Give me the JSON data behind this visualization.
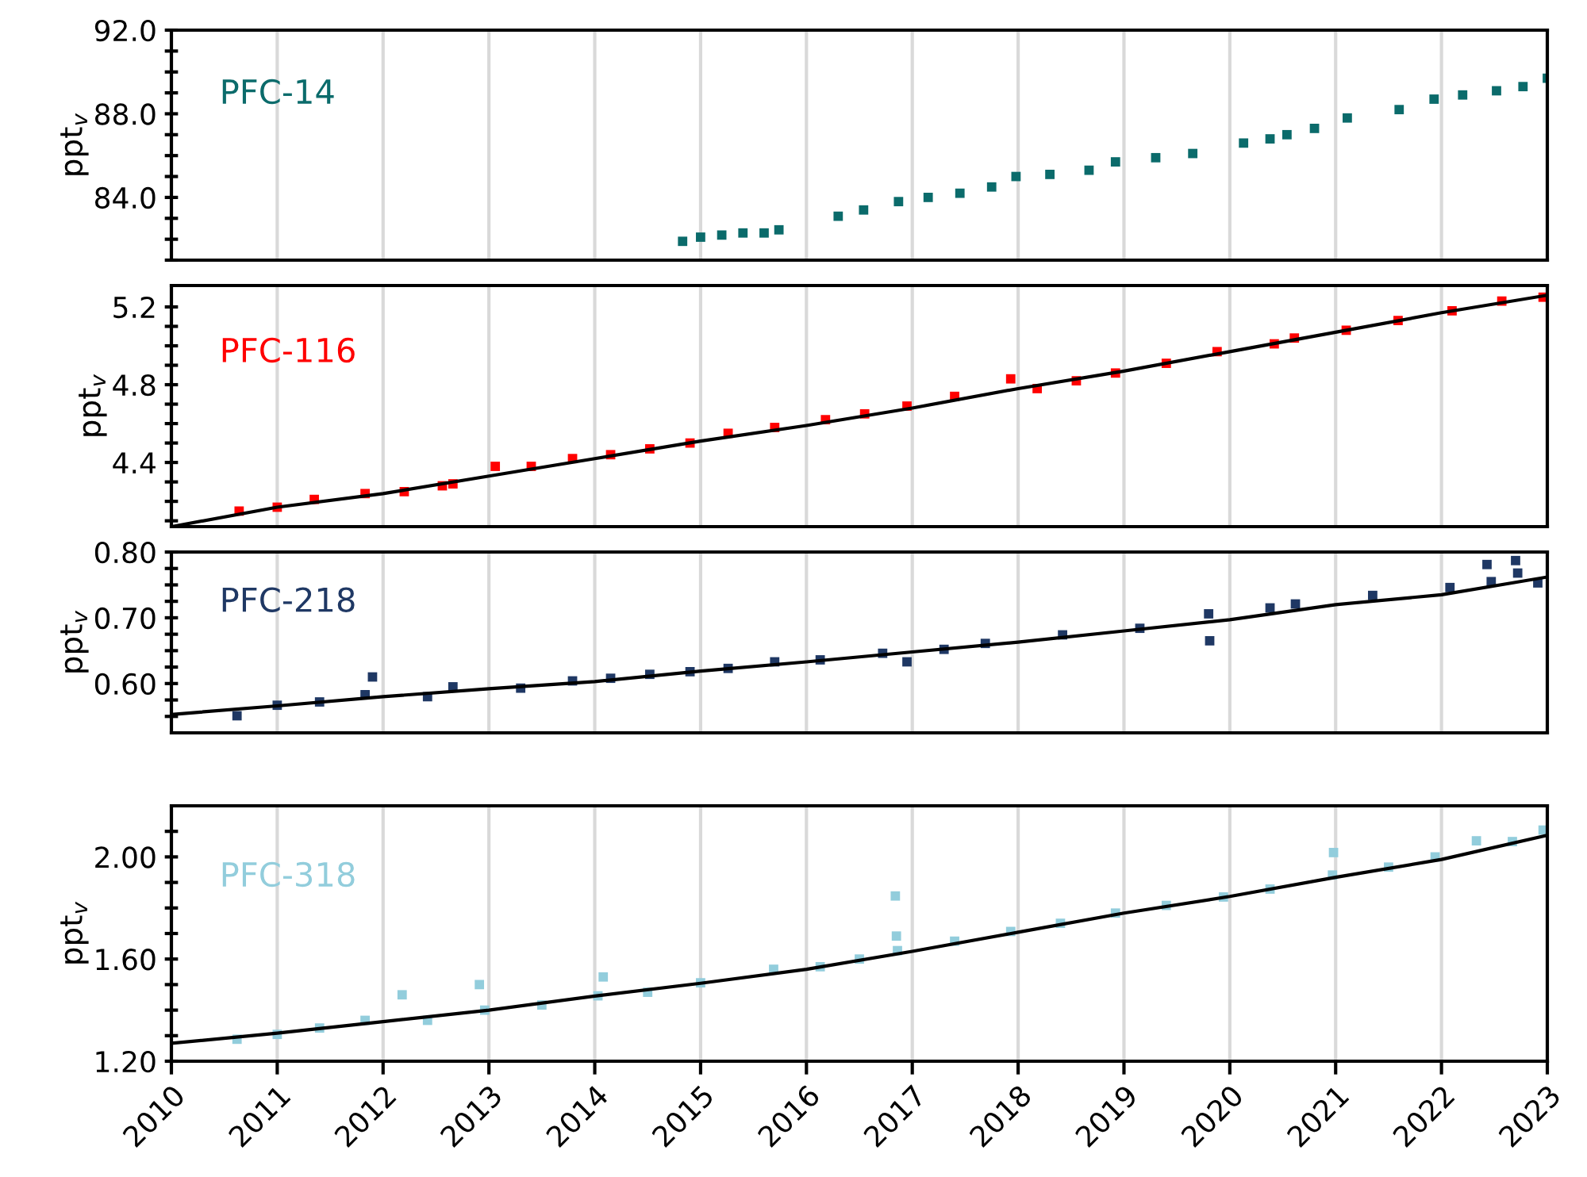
{
  "chart_data": [
    {
      "type": "scatter",
      "ylabel": "ppt$_{v}$",
      "xlim": [
        2010,
        2023
      ],
      "xticks": [
        2010,
        2011,
        2012,
        2013,
        2014,
        2015,
        2016,
        2017,
        2018,
        2019,
        2020,
        2021,
        2022,
        2023
      ],
      "ylim": [
        81,
        92
      ],
      "yticks": [
        {
          "value": 81,
          "label": null
        },
        {
          "value": 82,
          "label": null
        },
        {
          "value": 83,
          "label": null
        },
        {
          "value": 84,
          "label": "84.0"
        },
        {
          "value": 85,
          "label": null
        },
        {
          "value": 86,
          "label": null
        },
        {
          "value": 87,
          "label": null
        },
        {
          "value": 88,
          "label": "88.0"
        },
        {
          "value": 89,
          "label": null
        },
        {
          "value": 90,
          "label": null
        },
        {
          "value": 91,
          "label": null
        },
        {
          "value": 92,
          "label": "92.0"
        }
      ],
      "grid": "x",
      "tick_labels": "y",
      "series": [
        {
          "name": "PFC-14",
          "marker": "square",
          "color": "#0b6b6b",
          "x": [
            2014.83,
            2015.0,
            2015.2,
            2015.4,
            2015.6,
            2015.74,
            2016.3,
            2016.54,
            2016.87,
            2017.15,
            2017.45,
            2017.75,
            2017.98,
            2018.3,
            2018.67,
            2018.92,
            2019.3,
            2019.65,
            2020.13,
            2020.38,
            2020.54,
            2020.8,
            2021.11,
            2021.6,
            2021.93,
            2022.2,
            2022.52,
            2022.77,
            2023.0
          ],
          "values": [
            81.9,
            82.1,
            82.2,
            82.3,
            82.3,
            82.45,
            83.1,
            83.4,
            83.8,
            84.0,
            84.2,
            84.5,
            85.0,
            85.1,
            85.3,
            85.7,
            85.9,
            86.1,
            86.6,
            86.8,
            87.0,
            87.3,
            87.8,
            88.2,
            88.7,
            88.9,
            89.1,
            89.3,
            89.7
          ]
        }
      ]
    },
    {
      "type": "scatter",
      "ylabel": "ppt$_{v}$",
      "xlim": [
        2010,
        2023
      ],
      "xticks": [
        2010,
        2011,
        2012,
        2013,
        2014,
        2015,
        2016,
        2017,
        2018,
        2019,
        2020,
        2021,
        2022,
        2023
      ],
      "ylim": [
        4.07,
        5.31
      ],
      "yticks": [
        {
          "value": 4.1,
          "label": null
        },
        {
          "value": 4.2,
          "label": null
        },
        {
          "value": 4.3,
          "label": null
        },
        {
          "value": 4.4,
          "label": "4.4"
        },
        {
          "value": 4.5,
          "label": null
        },
        {
          "value": 4.6,
          "label": null
        },
        {
          "value": 4.7,
          "label": null
        },
        {
          "value": 4.8,
          "label": "4.8"
        },
        {
          "value": 4.9,
          "label": null
        },
        {
          "value": 5.0,
          "label": null
        },
        {
          "value": 5.1,
          "label": null
        },
        {
          "value": 5.2,
          "label": "5.2"
        }
      ],
      "grid": "x",
      "tick_labels": "y",
      "series": [
        {
          "name": "PFC-116",
          "marker": "square",
          "color": "#ff0000",
          "x": [
            2010.64,
            2011.0,
            2011.35,
            2011.83,
            2012.2,
            2012.56,
            2012.66,
            2013.06,
            2013.4,
            2013.79,
            2014.15,
            2014.52,
            2014.9,
            2015.26,
            2015.7,
            2016.18,
            2016.55,
            2016.95,
            2017.4,
            2017.93,
            2018.18,
            2018.55,
            2018.92,
            2019.4,
            2019.88,
            2020.42,
            2020.61,
            2021.1,
            2021.59,
            2022.1,
            2022.57,
            2022.96
          ],
          "values": [
            4.15,
            4.17,
            4.21,
            4.24,
            4.25,
            4.28,
            4.29,
            4.38,
            4.38,
            4.42,
            4.44,
            4.47,
            4.5,
            4.55,
            4.58,
            4.62,
            4.65,
            4.69,
            4.74,
            4.83,
            4.78,
            4.82,
            4.86,
            4.91,
            4.97,
            5.01,
            5.04,
            5.08,
            5.13,
            5.18,
            5.23,
            5.25
          ]
        },
        {
          "type": "line",
          "marker": "none",
          "color": "#000000",
          "x": [
            2010,
            2011,
            2012,
            2013,
            2014,
            2015,
            2016,
            2017,
            2018,
            2019,
            2020,
            2021,
            2022,
            2023
          ],
          "values": [
            4.07,
            4.17,
            4.24,
            4.33,
            4.42,
            4.51,
            4.59,
            4.68,
            4.78,
            4.87,
            4.97,
            5.07,
            5.17,
            5.26
          ]
        }
      ]
    },
    {
      "type": "scatter",
      "ylabel": "ppt$_{v}$",
      "xlim": [
        2010,
        2023
      ],
      "xticks": [
        2010,
        2011,
        2012,
        2013,
        2014,
        2015,
        2016,
        2017,
        2018,
        2019,
        2020,
        2021,
        2022,
        2023
      ],
      "ylim": [
        0.525,
        0.8
      ],
      "yticks": [
        {
          "value": 0.55,
          "label": null
        },
        {
          "value": 0.575,
          "label": null
        },
        {
          "value": 0.6,
          "label": "0.60"
        },
        {
          "value": 0.625,
          "label": null
        },
        {
          "value": 0.65,
          "label": null
        },
        {
          "value": 0.675,
          "label": null
        },
        {
          "value": 0.7,
          "label": "0.70"
        },
        {
          "value": 0.725,
          "label": null
        },
        {
          "value": 0.75,
          "label": null
        },
        {
          "value": 0.775,
          "label": null
        },
        {
          "value": 0.8,
          "label": "0.80"
        }
      ],
      "grid": "x",
      "tick_labels": "y",
      "series": [
        {
          "name": "PFC-218",
          "marker": "square",
          "color": "#1f3864",
          "x": [
            2010.62,
            2011.0,
            2011.4,
            2011.83,
            2011.9,
            2012.42,
            2012.66,
            2013.3,
            2013.79,
            2014.15,
            2014.52,
            2014.9,
            2015.26,
            2015.7,
            2016.13,
            2016.72,
            2016.95,
            2017.3,
            2017.69,
            2018.42,
            2019.15,
            2019.8,
            2019.81,
            2020.38,
            2020.62,
            2021.35,
            2022.08,
            2022.43,
            2022.47,
            2022.7,
            2022.72,
            2022.91
          ],
          "values": [
            0.551,
            0.567,
            0.572,
            0.583,
            0.61,
            0.58,
            0.595,
            0.593,
            0.604,
            0.608,
            0.614,
            0.618,
            0.623,
            0.633,
            0.636,
            0.646,
            0.633,
            0.652,
            0.661,
            0.674,
            0.684,
            0.706,
            0.665,
            0.715,
            0.721,
            0.734,
            0.746,
            0.781,
            0.755,
            0.787,
            0.768,
            0.753
          ]
        },
        {
          "type": "line",
          "marker": "none",
          "color": "#000000",
          "x": [
            2010,
            2011,
            2012,
            2013,
            2014,
            2015,
            2016,
            2017,
            2018,
            2019,
            2020,
            2021,
            2022,
            2023
          ],
          "values": [
            0.553,
            0.566,
            0.58,
            0.592,
            0.603,
            0.619,
            0.633,
            0.648,
            0.663,
            0.68,
            0.697,
            0.72,
            0.735,
            0.762
          ]
        }
      ]
    },
    {
      "type": "scatter",
      "ylabel": "ppt$_{v}$",
      "xlim": [
        2010,
        2023
      ],
      "xticks": [
        2010,
        2011,
        2012,
        2013,
        2014,
        2015,
        2016,
        2017,
        2018,
        2019,
        2020,
        2021,
        2022,
        2023
      ],
      "ylim": [
        1.2,
        2.2
      ],
      "yticks": [
        {
          "value": 1.2,
          "label": "1.20"
        },
        {
          "value": 1.3,
          "label": null
        },
        {
          "value": 1.4,
          "label": null
        },
        {
          "value": 1.5,
          "label": null
        },
        {
          "value": 1.6,
          "label": "1.60"
        },
        {
          "value": 1.7,
          "label": null
        },
        {
          "value": 1.8,
          "label": null
        },
        {
          "value": 1.9,
          "label": null
        },
        {
          "value": 2.0,
          "label": "2.00"
        },
        {
          "value": 2.1,
          "label": null
        }
      ],
      "grid": "x",
      "series": [
        {
          "name": "PFC-318",
          "marker": "square",
          "color": "#92cddc",
          "x": [
            2010.62,
            2011.0,
            2011.4,
            2011.83,
            2012.18,
            2012.42,
            2012.91,
            2012.96,
            2013.5,
            2014.03,
            2014.08,
            2014.5,
            2015.0,
            2015.69,
            2016.13,
            2016.5,
            2016.84,
            2016.85,
            2016.86,
            2017.4,
            2017.93,
            2018.4,
            2018.92,
            2019.4,
            2019.94,
            2020.38,
            2020.97,
            2020.98,
            2021.5,
            2021.94,
            2022.33,
            2022.67,
            2022.96
          ],
          "values": [
            1.286,
            1.305,
            1.33,
            1.36,
            1.46,
            1.36,
            1.5,
            1.4,
            1.42,
            1.456,
            1.53,
            1.47,
            1.507,
            1.56,
            1.57,
            1.6,
            1.847,
            1.69,
            1.633,
            1.67,
            1.708,
            1.74,
            1.78,
            1.81,
            1.843,
            1.874,
            1.929,
            2.017,
            1.96,
            2.0,
            2.063,
            2.06,
            2.105
          ]
        },
        {
          "type": "line",
          "marker": "none",
          "color": "#000000",
          "x": [
            2010,
            2011,
            2012,
            2013,
            2014,
            2015,
            2016,
            2017,
            2018,
            2019,
            2020,
            2021,
            2022,
            2023
          ],
          "values": [
            1.27,
            1.31,
            1.355,
            1.4,
            1.455,
            1.505,
            1.56,
            1.63,
            1.705,
            1.78,
            1.845,
            1.92,
            1.99,
            2.085
          ]
        }
      ]
    }
  ]
}
